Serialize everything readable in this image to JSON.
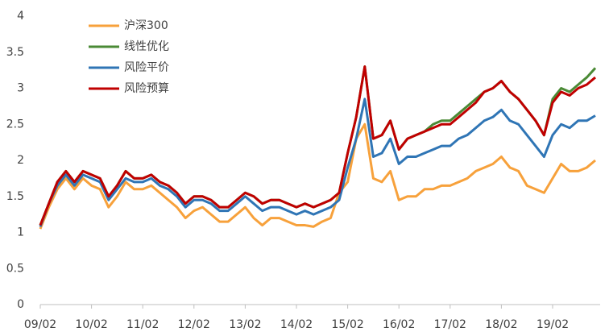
{
  "chart_data": {
    "type": "line",
    "categories": [
      "09/02",
      null,
      null,
      null,
      null,
      null,
      "10/02",
      null,
      null,
      null,
      null,
      null,
      "11/02",
      null,
      null,
      null,
      null,
      null,
      "12/02",
      null,
      null,
      null,
      null,
      null,
      "13/02",
      null,
      null,
      null,
      null,
      null,
      "14/02",
      null,
      null,
      null,
      null,
      null,
      "15/02",
      null,
      null,
      null,
      null,
      null,
      "16/02",
      null,
      null,
      null,
      null,
      null,
      "17/02",
      null,
      null,
      null,
      null,
      null,
      "18/02",
      null,
      null,
      null,
      null,
      null,
      "19/02",
      null,
      null,
      null,
      null,
      null
    ],
    "series": [
      {
        "name": "沪深300",
        "color": "#f7a13b",
        "values": [
          1.05,
          1.35,
          1.6,
          1.75,
          1.6,
          1.75,
          1.65,
          1.6,
          1.35,
          1.5,
          1.7,
          1.6,
          1.6,
          1.65,
          1.55,
          1.45,
          1.35,
          1.2,
          1.3,
          1.35,
          1.25,
          1.15,
          1.15,
          1.25,
          1.35,
          1.2,
          1.1,
          1.2,
          1.2,
          1.15,
          1.1,
          1.1,
          1.08,
          1.15,
          1.2,
          1.55,
          1.7,
          2.3,
          2.5,
          1.75,
          1.7,
          1.85,
          1.45,
          1.5,
          1.5,
          1.6,
          1.6,
          1.65,
          1.65,
          1.7,
          1.75,
          1.85,
          1.9,
          1.95,
          2.05,
          1.9,
          1.85,
          1.65,
          1.6,
          1.55,
          1.75,
          1.95,
          1.85,
          1.85,
          1.9,
          2.0
        ]
      },
      {
        "name": "线性优化",
        "color": "#4a8a35",
        "values": [
          1.1,
          1.4,
          1.7,
          1.85,
          1.7,
          1.85,
          1.8,
          1.75,
          1.5,
          1.65,
          1.85,
          1.75,
          1.75,
          1.8,
          1.7,
          1.65,
          1.55,
          1.4,
          1.5,
          1.5,
          1.45,
          1.35,
          1.35,
          1.45,
          1.55,
          1.5,
          1.4,
          1.45,
          1.45,
          1.4,
          1.35,
          1.4,
          1.35,
          1.4,
          1.45,
          1.55,
          2.1,
          2.6,
          3.3,
          2.3,
          2.35,
          2.55,
          2.15,
          2.3,
          2.35,
          2.4,
          2.5,
          2.55,
          2.55,
          2.65,
          2.75,
          2.85,
          2.95,
          3.0,
          3.1,
          2.95,
          2.85,
          2.7,
          2.55,
          2.35,
          2.85,
          3.0,
          2.95,
          3.05,
          3.15,
          3.28
        ]
      },
      {
        "name": "风险平价",
        "color": "#2f75b5",
        "values": [
          1.08,
          1.4,
          1.65,
          1.8,
          1.65,
          1.8,
          1.75,
          1.7,
          1.45,
          1.6,
          1.75,
          1.7,
          1.7,
          1.75,
          1.65,
          1.6,
          1.5,
          1.35,
          1.45,
          1.45,
          1.4,
          1.3,
          1.3,
          1.4,
          1.5,
          1.4,
          1.3,
          1.35,
          1.35,
          1.3,
          1.25,
          1.3,
          1.25,
          1.3,
          1.35,
          1.45,
          1.9,
          2.3,
          2.85,
          2.05,
          2.1,
          2.3,
          1.95,
          2.05,
          2.05,
          2.1,
          2.15,
          2.2,
          2.2,
          2.3,
          2.35,
          2.45,
          2.55,
          2.6,
          2.7,
          2.55,
          2.5,
          2.35,
          2.2,
          2.05,
          2.35,
          2.5,
          2.45,
          2.55,
          2.55,
          2.62
        ]
      },
      {
        "name": "风险预算",
        "color": "#c00000",
        "values": [
          1.1,
          1.4,
          1.7,
          1.85,
          1.7,
          1.85,
          1.8,
          1.75,
          1.5,
          1.65,
          1.85,
          1.75,
          1.75,
          1.8,
          1.7,
          1.65,
          1.55,
          1.4,
          1.5,
          1.5,
          1.45,
          1.35,
          1.35,
          1.45,
          1.55,
          1.5,
          1.4,
          1.45,
          1.45,
          1.4,
          1.35,
          1.4,
          1.35,
          1.4,
          1.45,
          1.55,
          2.1,
          2.6,
          3.3,
          2.3,
          2.35,
          2.55,
          2.15,
          2.3,
          2.35,
          2.4,
          2.45,
          2.5,
          2.5,
          2.6,
          2.7,
          2.8,
          2.95,
          3.0,
          3.1,
          2.95,
          2.85,
          2.7,
          2.55,
          2.35,
          2.8,
          2.95,
          2.9,
          3.0,
          3.05,
          3.15
        ]
      }
    ],
    "ylim": [
      0,
      4
    ],
    "yticks": [
      0,
      0.5,
      1,
      1.5,
      2,
      2.5,
      3,
      3.5,
      4
    ],
    "grid": false
  }
}
